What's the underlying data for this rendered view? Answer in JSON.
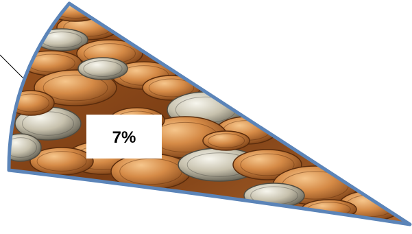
{
  "chart_data": {
    "type": "pie",
    "slices": [
      {
        "value": 7,
        "label": "7%"
      }
    ]
  },
  "colors": {
    "slice_border": "#5b84b8",
    "leader_line": "#000000",
    "label_box": "#ffffff",
    "label_text": "#000000",
    "coin_copper_light": "#e8a463",
    "coin_copper_mid": "#c9773a",
    "coin_copper_dark": "#7a3e14",
    "coin_silver_light": "#ececdf",
    "coin_silver_mid": "#bdb7a2",
    "coin_silver_dark": "#6d6a5c"
  },
  "icons": {
    "fill": "coins-photo"
  }
}
